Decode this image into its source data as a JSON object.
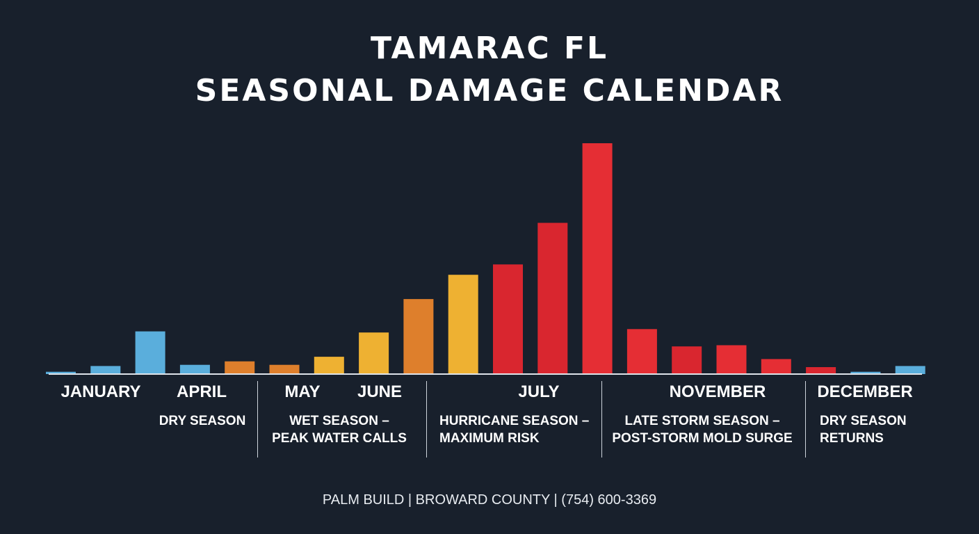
{
  "title_line1": "TAMARAC FL",
  "title_line2": "SEASONAL DAMAGE CALENDAR",
  "footer": "PALM BUILD | BROWARD COUNTY | (754) 600-3369",
  "colors": {
    "background": "#18202c",
    "blue": "#5aaedc",
    "orange": "#de7f2c",
    "gold": "#eeb132",
    "red": "#d9262f",
    "bright_red": "#e52e34"
  },
  "month_labels": [
    "JANUARY",
    "APRIL",
    "MAY",
    "JUNE",
    "JULY",
    "NOVEMBER",
    "DECEMBER"
  ],
  "season_labels": [
    "DRY SEASON",
    "WET SEASON –\nPEAK WATER CALLS",
    "HURRICANE SEASON –\nMAXIMUM RISK",
    "LATE STORM SEASON –\nPOST-STORM MOLD SURGE",
    "DRY SEASON\nRETURNS"
  ],
  "chart_data": {
    "type": "bar",
    "title": "TAMARAC FL SEASONAL DAMAGE CALENDAR",
    "xlabel": "",
    "ylabel": "",
    "ylim": [
      0,
      100
    ],
    "grid": false,
    "legend": "none",
    "values": [
      1,
      3.5,
      18.5,
      4,
      5.5,
      4,
      7.5,
      18,
      32.5,
      43,
      47.5,
      65.5,
      100,
      19.5,
      12,
      12.5,
      6.5,
      3,
      1,
      3.5
    ],
    "colors": [
      "blue",
      "blue",
      "blue",
      "blue",
      "orange",
      "orange",
      "gold",
      "gold",
      "orange",
      "gold",
      "red",
      "red",
      "bright_red",
      "bright_red",
      "red",
      "bright_red",
      "bright_red",
      "red",
      "blue",
      "blue"
    ]
  }
}
